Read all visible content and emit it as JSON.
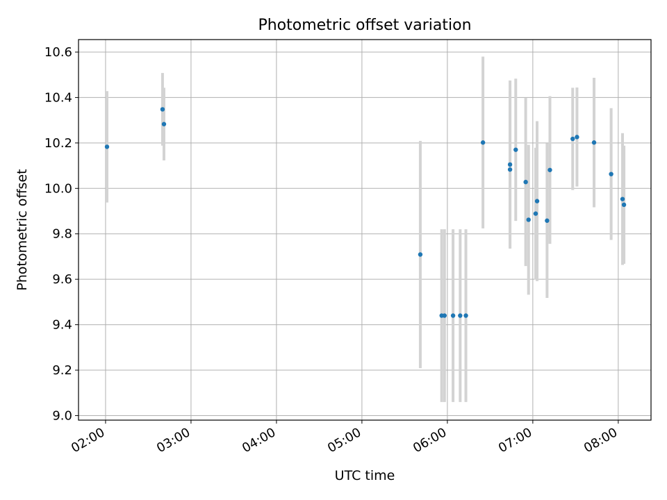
{
  "chart_data": {
    "type": "scatter",
    "title": "Photometric offset variation",
    "xlabel": "UTC time",
    "ylabel": "Photometric offset",
    "xlim": [
      "01:41",
      "08:23"
    ],
    "ylim": [
      8.98,
      10.655
    ],
    "x_ticks": [
      "02:00",
      "03:00",
      "04:00",
      "05:00",
      "06:00",
      "07:00",
      "08:00"
    ],
    "y_ticks": [
      "9.0",
      "9.2",
      "9.4",
      "9.6",
      "9.8",
      "10.0",
      "10.2",
      "10.4",
      "10.6"
    ],
    "grid": true,
    "point_color": "#1f77b4",
    "errorbar_color": "#d3d3d3",
    "series": [
      {
        "points": [
          {
            "x": "02:01",
            "y": 10.183,
            "err": 0.245
          },
          {
            "x": "02:40",
            "y": 10.348,
            "err": 0.16
          },
          {
            "x": "02:41",
            "y": 10.283,
            "err": 0.16
          },
          {
            "x": "05:41",
            "y": 9.709,
            "err": 0.5
          },
          {
            "x": "05:56",
            "y": 9.44,
            "err": 0.38
          },
          {
            "x": "05:58",
            "y": 9.44,
            "err": 0.38
          },
          {
            "x": "06:04",
            "y": 9.44,
            "err": 0.38
          },
          {
            "x": "06:09",
            "y": 9.44,
            "err": 0.38
          },
          {
            "x": "06:13",
            "y": 9.44,
            "err": 0.38
          },
          {
            "x": "06:25",
            "y": 10.202,
            "err": 0.378
          },
          {
            "x": "06:44",
            "y": 10.083,
            "err": 0.345
          },
          {
            "x": "06:44",
            "y": 10.105,
            "err": 0.37
          },
          {
            "x": "06:48",
            "y": 10.17,
            "err": 0.313
          },
          {
            "x": "06:55",
            "y": 10.028,
            "err": 0.37
          },
          {
            "x": "06:57",
            "y": 9.862,
            "err": 0.33
          },
          {
            "x": "07:02",
            "y": 9.889,
            "err": 0.29
          },
          {
            "x": "07:03",
            "y": 9.944,
            "err": 0.352
          },
          {
            "x": "07:10",
            "y": 9.858,
            "err": 0.34
          },
          {
            "x": "07:12",
            "y": 10.081,
            "err": 0.325
          },
          {
            "x": "07:28",
            "y": 10.218,
            "err": 0.225
          },
          {
            "x": "07:31",
            "y": 10.226,
            "err": 0.218
          },
          {
            "x": "07:43",
            "y": 10.202,
            "err": 0.285
          },
          {
            "x": "07:55",
            "y": 10.063,
            "err": 0.29
          },
          {
            "x": "08:03",
            "y": 9.953,
            "err": 0.29
          },
          {
            "x": "08:04",
            "y": 9.928,
            "err": 0.26
          }
        ]
      }
    ]
  }
}
